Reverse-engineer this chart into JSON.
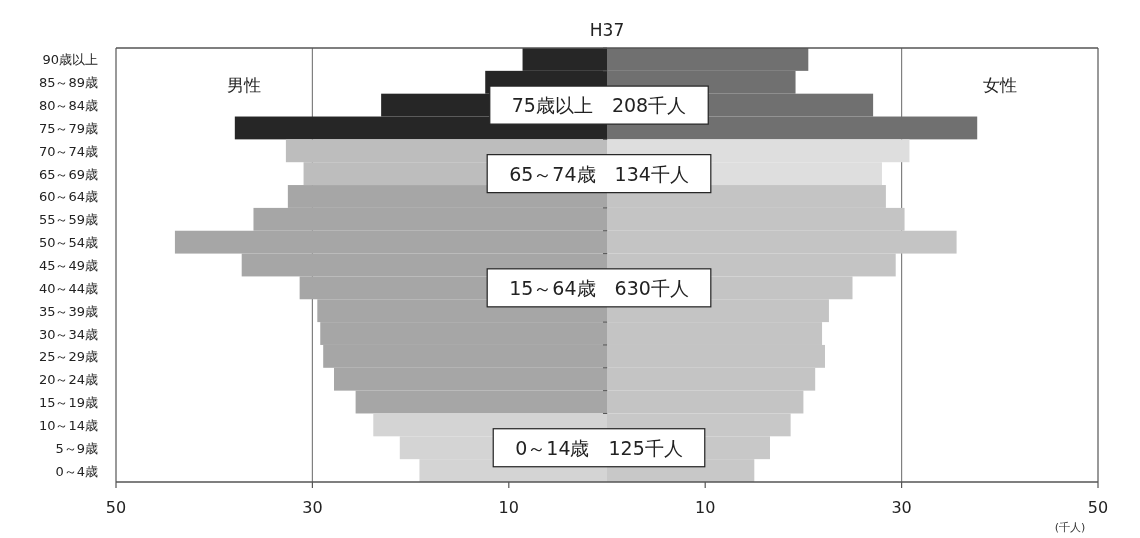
{
  "chart_data": {
    "type": "bar",
    "orientation": "horizontal",
    "stacked": true,
    "title": "H37",
    "xlabel": "(千人)",
    "categories": [
      "90歳以上",
      "85～89歳",
      "80～84歳",
      "75～79歳",
      "70～74歳",
      "65～69歳",
      "60～64歳",
      "55～59歳",
      "50～54歳",
      "45～49歳",
      "40～44歳",
      "35～39歳",
      "30～34歳",
      "25～29歳",
      "20～24歳",
      "15～19歳",
      "10～14歳",
      "5～9歳",
      "0～4歳"
    ],
    "series": [
      {
        "name": "男性",
        "values": [
          -8.6,
          -12.4,
          -23.0,
          -37.9,
          -32.7,
          -30.9,
          -32.5,
          -36.0,
          -44.0,
          -37.2,
          -31.3,
          -29.5,
          -29.2,
          -28.9,
          -27.8,
          -25.6,
          -23.8,
          -21.1,
          -19.1
        ],
        "colors": [
          "#262626",
          "#262626",
          "#262626",
          "#262626",
          "#bdbdbd",
          "#bdbdbd",
          "#a6a6a6",
          "#a6a6a6",
          "#a6a6a6",
          "#a6a6a6",
          "#a6a6a6",
          "#a6a6a6",
          "#a6a6a6",
          "#a6a6a6",
          "#a6a6a6",
          "#a6a6a6",
          "#d4d4d4",
          "#d4d4d4",
          "#d4d4d4"
        ]
      },
      {
        "name": "女性",
        "values": [
          20.5,
          19.2,
          27.1,
          37.7,
          30.8,
          28.0,
          28.4,
          30.3,
          35.6,
          29.4,
          25.0,
          22.6,
          21.9,
          22.2,
          21.2,
          20.0,
          18.7,
          16.6,
          15.0
        ],
        "colors": [
          "#707070",
          "#707070",
          "#707070",
          "#707070",
          "#dedede",
          "#dedede",
          "#c4c4c4",
          "#c4c4c4",
          "#c4c4c4",
          "#c4c4c4",
          "#c4c4c4",
          "#c4c4c4",
          "#c4c4c4",
          "#c4c4c4",
          "#c4c4c4",
          "#c4c4c4",
          "#c8c8c8",
          "#c8c8c8",
          "#c8c8c8"
        ]
      }
    ],
    "xlim": [
      -50,
      50
    ],
    "xticks": [
      {
        "value": -50,
        "label": "50"
      },
      {
        "value": -30,
        "label": "30"
      },
      {
        "value": -10,
        "label": "10"
      },
      {
        "value": 10,
        "label": "10"
      },
      {
        "value": 30,
        "label": "30"
      },
      {
        "value": 50,
        "label": "50"
      }
    ],
    "ref_lines": [
      {
        "axis": "x",
        "value": -30,
        "color": "#808080"
      },
      {
        "axis": "x",
        "value": 0,
        "color": "#606060"
      },
      {
        "axis": "x",
        "value": 30,
        "color": "#808080"
      }
    ],
    "annotations": [
      {
        "text": "75歳以上　208千人",
        "y": "80～84歳"
      },
      {
        "text": "65～74歳　134千人",
        "y": "65～69歳"
      },
      {
        "text": "15～64歳　630千人",
        "y": "40～44歳"
      },
      {
        "text": "0～14歳　125千人",
        "y": "5～9歳"
      }
    ],
    "grid": false
  }
}
